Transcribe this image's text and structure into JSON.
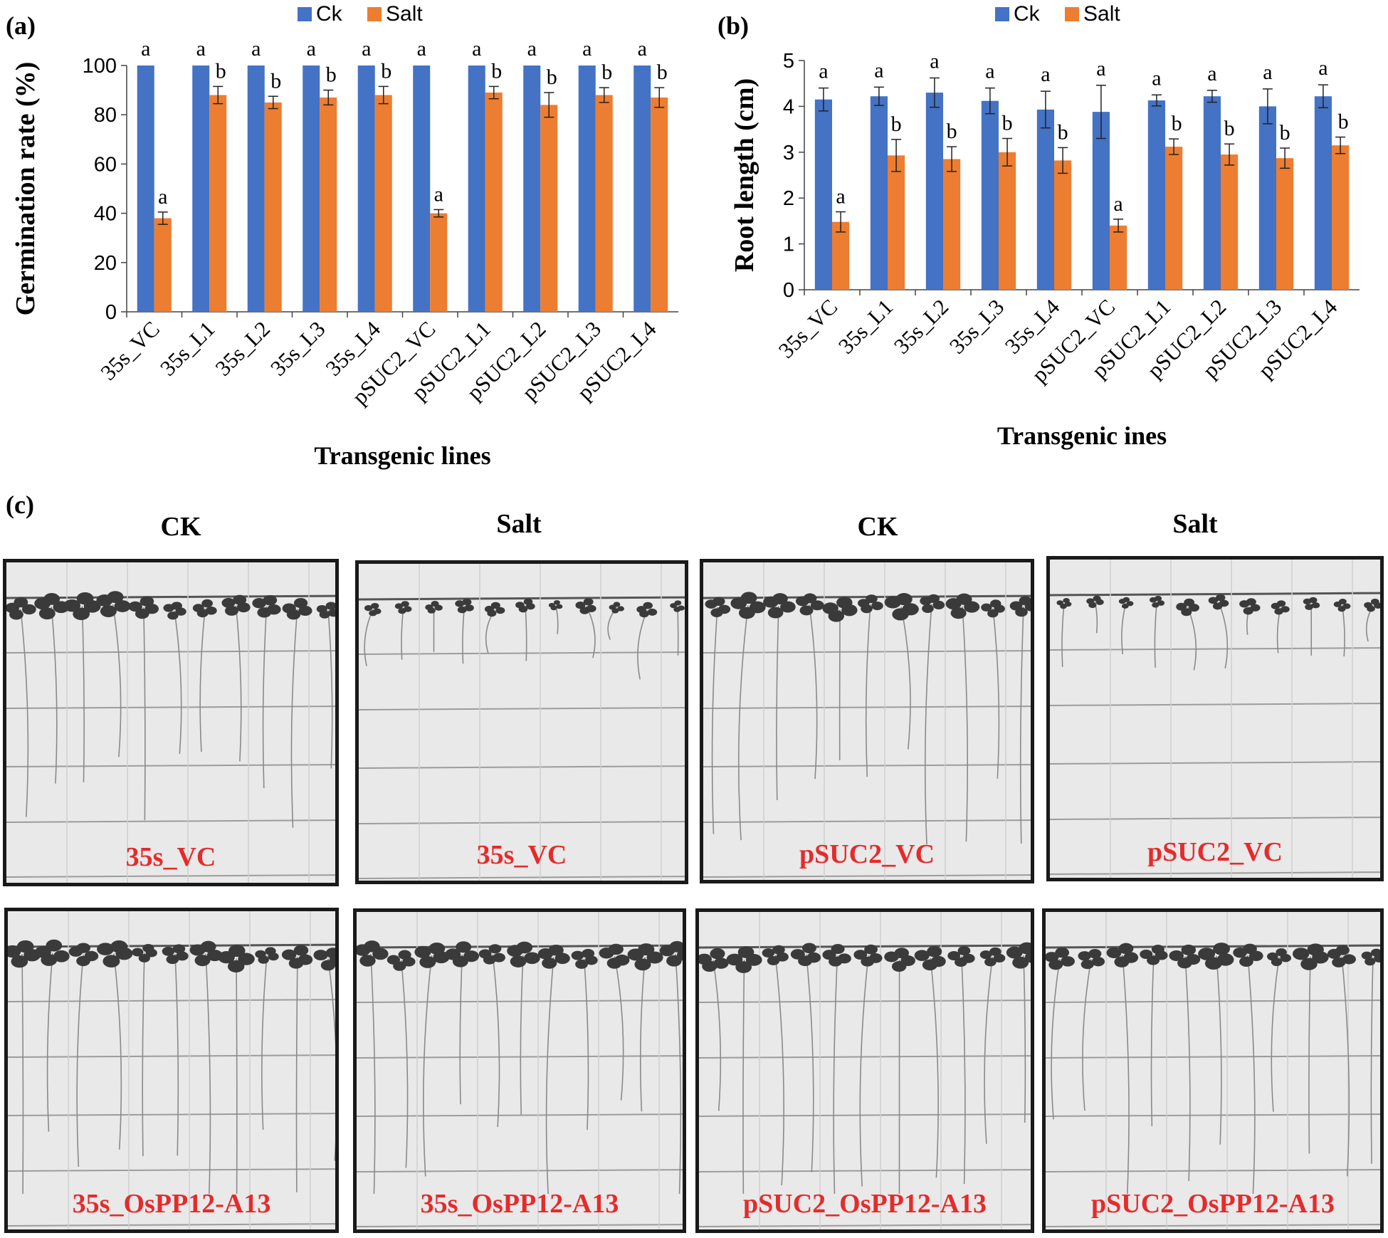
{
  "chart_data": [
    {
      "panel": "(a)",
      "type": "bar",
      "title": "",
      "xlabel": "Transgenic lines",
      "ylabel": "Germination rate (%)",
      "ylim": [
        0,
        100
      ],
      "yticks": [
        0,
        20,
        40,
        60,
        80,
        100
      ],
      "categories": [
        "35s_VC",
        "35s_L1",
        "35s_L2",
        "35s_L3",
        "35s_L4",
        "pSUC2_VC",
        "pSUC2_L1",
        "pSUC2_L2",
        "pSUC2_L3",
        "pSUC2_L4"
      ],
      "series": [
        {
          "name": "Ck",
          "color": "#4472c4",
          "values": [
            100,
            100,
            100,
            100,
            100,
            100,
            100,
            100,
            100,
            100
          ],
          "errors": [
            0,
            0,
            0,
            0,
            0,
            0,
            0,
            0,
            0,
            0
          ],
          "letters": [
            "a",
            "a",
            "a",
            "a",
            "a",
            "a",
            "a",
            "a",
            "a",
            "a"
          ]
        },
        {
          "name": "Salt",
          "color": "#ed7d31",
          "values": [
            38,
            88,
            85,
            87,
            88,
            40,
            89,
            84,
            88,
            87
          ],
          "errors": [
            2.5,
            3.5,
            2.5,
            3,
            3.5,
            1.5,
            2.5,
            5,
            3,
            4
          ],
          "letters": [
            "a",
            "b",
            "b",
            "b",
            "b",
            "a",
            "b",
            "b",
            "b",
            "b"
          ]
        }
      ],
      "legend": "top-center",
      "grid": false
    },
    {
      "panel": "(b)",
      "type": "bar",
      "title": "",
      "xlabel": "Transgenic ines",
      "ylabel": "Root length (cm)",
      "ylim": [
        0,
        5
      ],
      "yticks": [
        0,
        1,
        2,
        3,
        4,
        5
      ],
      "categories": [
        "35s_VC",
        "35s_L1",
        "35s_L2",
        "35s_L3",
        "35s_L4",
        "pSUC2_VC",
        "pSUC2_L1",
        "pSUC2_L2",
        "pSUC2_L3",
        "pSUC2_L4"
      ],
      "series": [
        {
          "name": "Ck",
          "color": "#4472c4",
          "values": [
            4.15,
            4.22,
            4.3,
            4.12,
            3.93,
            3.88,
            4.13,
            4.22,
            4.0,
            4.22
          ],
          "errors": [
            0.25,
            0.2,
            0.32,
            0.28,
            0.4,
            0.58,
            0.12,
            0.13,
            0.38,
            0.25
          ],
          "letters": [
            "a",
            "a",
            "a",
            "a",
            "a",
            "a",
            "a",
            "a",
            "a",
            "a"
          ]
        },
        {
          "name": "Salt",
          "color": "#ed7d31",
          "values": [
            1.48,
            2.93,
            2.85,
            3.0,
            2.82,
            1.4,
            3.12,
            2.95,
            2.87,
            3.15
          ],
          "errors": [
            0.22,
            0.35,
            0.27,
            0.3,
            0.28,
            0.14,
            0.17,
            0.23,
            0.22,
            0.18
          ],
          "letters": [
            "a",
            "b",
            "b",
            "b",
            "b",
            "a",
            "b",
            "b",
            "b",
            "b"
          ]
        }
      ],
      "legend": "top-center",
      "grid": false
    }
  ],
  "panel_c": {
    "tag": "(c)",
    "column_headers": [
      "CK",
      "Salt",
      "CK",
      "Salt"
    ],
    "photos_row1": [
      "35s_VC",
      "35s_VC",
      "pSUC2_VC",
      "pSUC2_VC"
    ],
    "photos_row2": [
      "35s_OsPP12-A13",
      "35s_OsPP12-A13",
      "pSUC2_OsPP12-A13",
      "pSUC2_OsPP12-A13"
    ]
  }
}
